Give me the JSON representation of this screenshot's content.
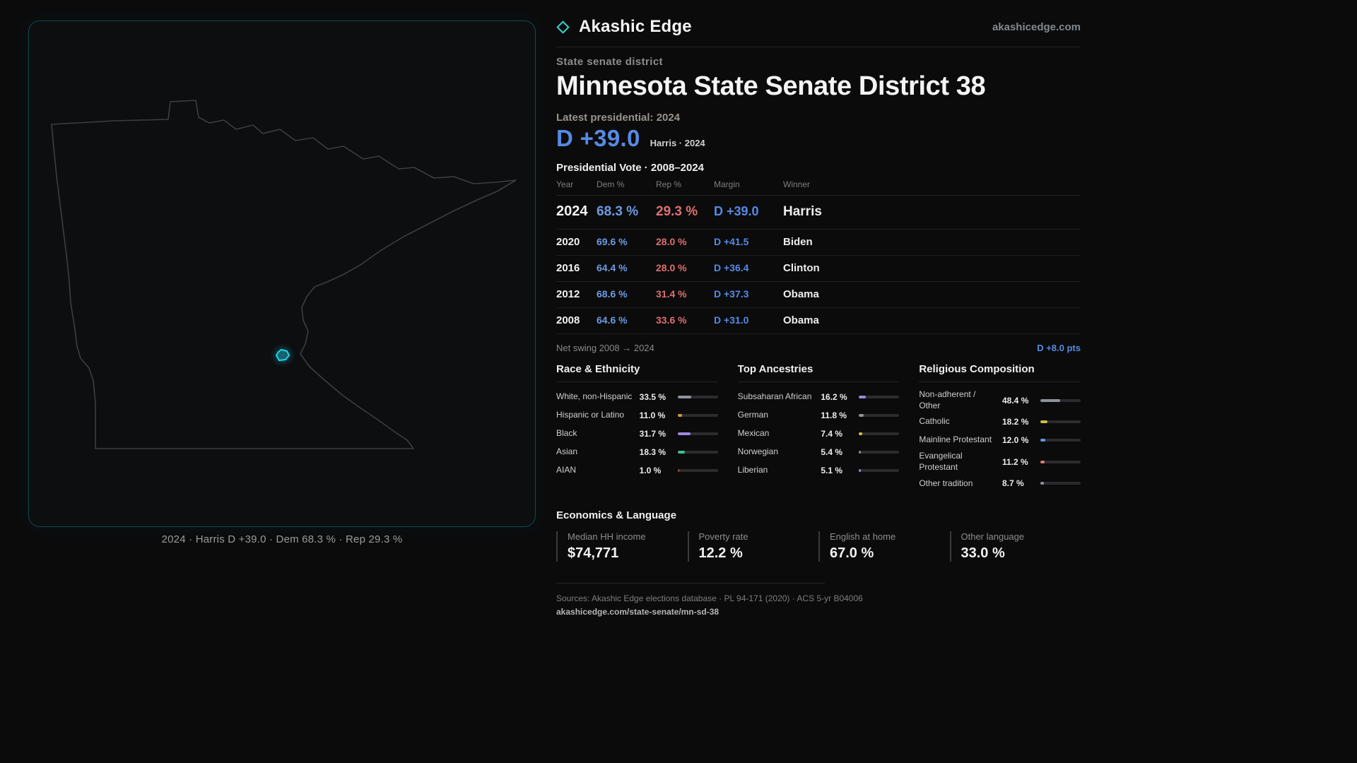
{
  "header": {
    "brand": "Akashic Edge",
    "site": "akashicedge.com",
    "logo_icon": "diamond-outline",
    "accent_teal": "#2fd6c8"
  },
  "map": {
    "state": "Minnesota",
    "caption": "2024 · Harris D +39.0 · Dem 68.3 % · Rep 29.3 %",
    "district_color": "#22d3ee",
    "outline_color": "#3b3f42"
  },
  "district": {
    "kicker": "State senate district",
    "title": "Minnesota State Senate District 38",
    "latest_label": "Latest presidential: 2024",
    "headline_margin": "D +39.0",
    "headline_detail": "Harris · 2024",
    "dem_color": "#568ae4",
    "rep_color": "#dd7070"
  },
  "vote_table": {
    "title": "Presidential Vote · 2008–2024",
    "columns": [
      "Year",
      "Dem %",
      "Rep %",
      "Margin",
      "Winner"
    ],
    "rows": [
      {
        "year": "2024",
        "dem": "68.3 %",
        "rep": "29.3 %",
        "margin": "D +39.0",
        "winner": "Harris"
      },
      {
        "year": "2020",
        "dem": "69.6 %",
        "rep": "28.0 %",
        "margin": "D +41.5",
        "winner": "Biden"
      },
      {
        "year": "2016",
        "dem": "64.4 %",
        "rep": "28.0 %",
        "margin": "D +36.4",
        "winner": "Clinton"
      },
      {
        "year": "2012",
        "dem": "68.6 %",
        "rep": "31.4 %",
        "margin": "D +37.3",
        "winner": "Obama"
      },
      {
        "year": "2008",
        "dem": "64.6 %",
        "rep": "33.6 %",
        "margin": "D +31.0",
        "winner": "Obama"
      }
    ],
    "net_swing_label": "Net swing 2008 → 2024",
    "net_swing_value": "D +8.0 pts"
  },
  "demographics": {
    "race": {
      "title": "Race & Ethnicity",
      "items": [
        {
          "label": "White, non-Hispanic",
          "display": "33.5 %",
          "value": 33.5,
          "color": "#8e949c"
        },
        {
          "label": "Hispanic or Latino",
          "display": "11.0 %",
          "value": 11.0,
          "color": "#d19a3d"
        },
        {
          "label": "Black",
          "display": "31.7 %",
          "value": 31.7,
          "color": "#9b87e0"
        },
        {
          "label": "Asian",
          "display": "18.3 %",
          "value": 18.3,
          "color": "#3fbf8f"
        },
        {
          "label": "AIAN",
          "display": "1.0 %",
          "value": 1.0,
          "color": "#b5543f"
        }
      ]
    },
    "ancestries": {
      "title": "Top Ancestries",
      "items": [
        {
          "label": "Subsaharan African",
          "display": "16.2 %",
          "value": 16.2,
          "color": "#9b87e0"
        },
        {
          "label": "German",
          "display": "11.8 %",
          "value": 11.8,
          "color": "#8e949c"
        },
        {
          "label": "Mexican",
          "display": "7.4 %",
          "value": 7.4,
          "color": "#d4c24a"
        },
        {
          "label": "Norwegian",
          "display": "5.4 %",
          "value": 5.4,
          "color": "#8e949c"
        },
        {
          "label": "Liberian",
          "display": "5.1 %",
          "value": 5.1,
          "color": "#9b87e0"
        }
      ]
    },
    "religion": {
      "title": "Religious Composition",
      "items": [
        {
          "label": "Non-adherent / Other",
          "display": "48.4 %",
          "value": 48.4,
          "color": "#8e949c"
        },
        {
          "label": "Catholic",
          "display": "18.2 %",
          "value": 18.2,
          "color": "#d1b94a"
        },
        {
          "label": "Mainline Protestant",
          "display": "12.0 %",
          "value": 12.0,
          "color": "#5d9ae0"
        },
        {
          "label": "Evangelical Protestant",
          "display": "11.2 %",
          "value": 11.2,
          "color": "#e07a70"
        },
        {
          "label": "Other tradition",
          "display": "8.7 %",
          "value": 8.7,
          "color": "#8e949c"
        }
      ]
    }
  },
  "economics": {
    "title": "Economics & Language",
    "stats": [
      {
        "label": "Median HH income",
        "value": "$74,771"
      },
      {
        "label": "Poverty rate",
        "value": "12.2 %"
      },
      {
        "label": "English at home",
        "value": "67.0 %"
      },
      {
        "label": "Other language",
        "value": "33.0 %"
      }
    ]
  },
  "footer": {
    "sources": "Sources: Akashic Edge elections database · PL 94-171 (2020) · ACS 5-yr B04006",
    "permalink": "akashicedge.com/state-senate/mn-sd-38"
  },
  "chart_data": [
    {
      "type": "table",
      "title": "Presidential Vote · 2008–2024",
      "columns": [
        "Year",
        "Dem %",
        "Rep %",
        "Margin",
        "Winner"
      ],
      "rows": [
        [
          2024,
          68.3,
          29.3,
          "D +39.0",
          "Harris"
        ],
        [
          2020,
          69.6,
          28.0,
          "D +41.5",
          "Biden"
        ],
        [
          2016,
          64.4,
          28.0,
          "D +36.4",
          "Clinton"
        ],
        [
          2012,
          68.6,
          31.4,
          "D +37.3",
          "Obama"
        ],
        [
          2008,
          64.6,
          33.6,
          "D +31.0",
          "Obama"
        ]
      ],
      "net_swing_party": "D",
      "net_swing_pts": 8.0
    },
    {
      "type": "bar",
      "title": "Race & Ethnicity",
      "categories": [
        "White, non-Hispanic",
        "Hispanic or Latino",
        "Black",
        "Asian",
        "AIAN"
      ],
      "values": [
        33.5,
        11.0,
        31.7,
        18.3,
        1.0
      ],
      "unit": "%",
      "xlim": [
        0,
        100
      ],
      "grid": false,
      "legend": false
    },
    {
      "type": "bar",
      "title": "Top Ancestries",
      "categories": [
        "Subsaharan African",
        "German",
        "Mexican",
        "Norwegian",
        "Liberian"
      ],
      "values": [
        16.2,
        11.8,
        7.4,
        5.4,
        5.1
      ],
      "unit": "%",
      "xlim": [
        0,
        100
      ],
      "grid": false,
      "legend": false
    },
    {
      "type": "bar",
      "title": "Religious Composition",
      "categories": [
        "Non-adherent / Other",
        "Catholic",
        "Mainline Protestant",
        "Evangelical Protestant",
        "Other tradition"
      ],
      "values": [
        48.4,
        18.2,
        12.0,
        11.2,
        8.7
      ],
      "unit": "%",
      "xlim": [
        0,
        100
      ],
      "grid": false,
      "legend": false
    }
  ]
}
